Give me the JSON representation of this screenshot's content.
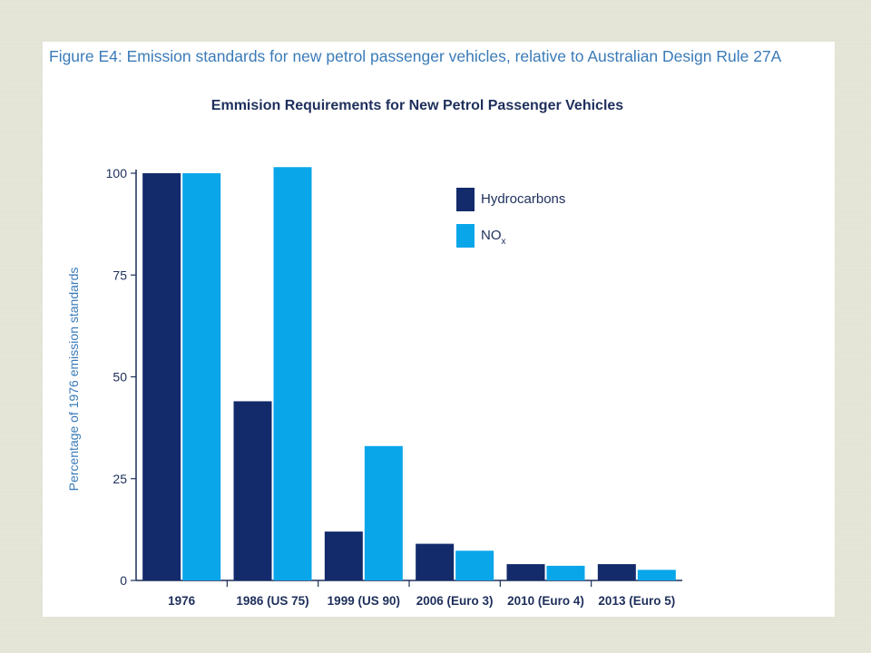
{
  "figure_caption": "Figure E4: Emission standards for new petrol passenger vehicles, relative to Australian Design Rule 27A",
  "chart_data": {
    "type": "bar",
    "title": "Emmision Requirements for New Petrol Passenger Vehicles",
    "xlabel": "",
    "ylabel": "Percentage of 1976 emission standards",
    "ylim": [
      0,
      100
    ],
    "yticks": [
      0,
      25,
      50,
      75,
      100
    ],
    "categories": [
      "1976",
      "1986 (US 75)",
      "1999 (US 90)",
      "2006 (Euro 3)",
      "2010 (Euro 4)",
      "2013 (Euro 5)"
    ],
    "series": [
      {
        "name": "Hydrocarbons",
        "color": "#132a6b",
        "values": [
          100,
          44,
          12,
          9,
          4,
          4
        ]
      },
      {
        "name": "NO",
        "subscript": "x",
        "color": "#0aa6ea",
        "values": [
          100,
          101.5,
          33,
          7.3,
          3.6,
          2.6
        ]
      }
    ],
    "legend": "top-right",
    "grid": false
  }
}
